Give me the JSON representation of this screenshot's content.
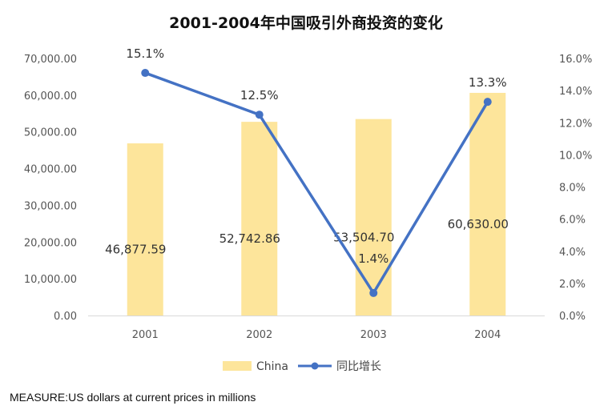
{
  "chart_data": {
    "type": "bar",
    "title": "2001-2004年中国吸引外商投资的变化",
    "categories": [
      "2001",
      "2002",
      "2003",
      "2004"
    ],
    "series": [
      {
        "name": "China",
        "type": "bar",
        "axis": "left",
        "color": "#FDE59B",
        "values": [
          46877.59,
          52742.86,
          53504.7,
          60630.0
        ],
        "value_labels": [
          "46,877.59",
          "52,742.86",
          "53,504.70",
          "60,630.00"
        ]
      },
      {
        "name": "同比增长",
        "type": "line",
        "axis": "right",
        "color": "#4472C4",
        "values": [
          15.1,
          12.5,
          1.4,
          13.3
        ],
        "value_labels": [
          "15.1%",
          "12.5%",
          "1.4%",
          "13.3%"
        ]
      }
    ],
    "y_left": {
      "ylim": [
        0,
        70000
      ],
      "tick_labels": [
        "0.00",
        "10,000.00",
        "20,000.00",
        "30,000.00",
        "40,000.00",
        "50,000.00",
        "60,000.00",
        "70,000.00"
      ]
    },
    "y_right": {
      "ylim": [
        0,
        16
      ],
      "tick_labels": [
        "0.0%",
        "2.0%",
        "4.0%",
        "6.0%",
        "8.0%",
        "10.0%",
        "12.0%",
        "14.0%",
        "16.0%"
      ]
    },
    "legend": {
      "position": "bottom",
      "items": [
        "China",
        "同比增长"
      ]
    },
    "grid": false,
    "xlabel": "",
    "ylabel": ""
  },
  "footer": {
    "measure_note": "MEASURE:US dollars at current prices in millions"
  }
}
